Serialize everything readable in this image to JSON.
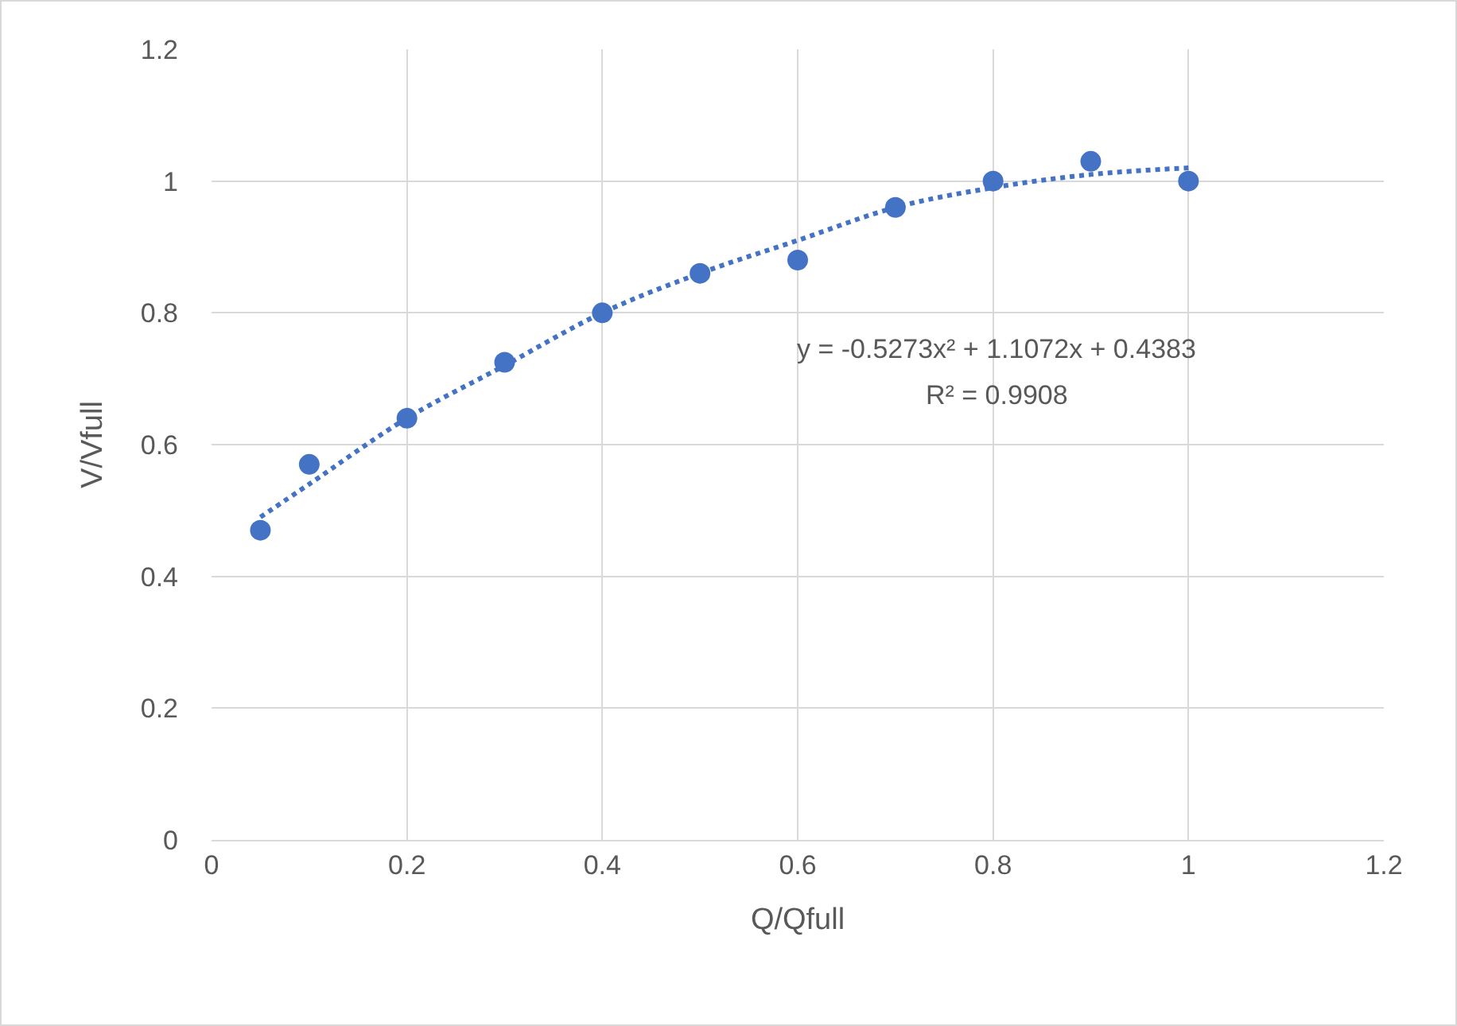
{
  "chart_data": {
    "type": "scatter",
    "xlabel": "Q/Qfull",
    "ylabel": "V/Vfull",
    "series": [
      {
        "color": "#4472c4",
        "marker": "circle",
        "x": [
          0.05,
          0.1,
          0.2,
          0.3,
          0.4,
          0.5,
          0.6,
          0.7,
          0.8,
          0.9,
          1.0
        ],
        "values": [
          0.47,
          0.57,
          0.64,
          0.725,
          0.8,
          0.86,
          0.88,
          0.96,
          1.0,
          1.03,
          1.0
        ]
      },
      {
        "type": "line",
        "color": "#4472c4",
        "line_style": "dotted",
        "x": [
          0.05,
          0.1,
          0.2,
          0.3,
          0.4,
          0.5,
          0.6,
          0.7,
          0.8,
          0.9,
          1.0
        ],
        "values": [
          0.49,
          0.54,
          0.64,
          0.72,
          0.8,
          0.86,
          0.91,
          0.96,
          0.99,
          1.01,
          1.02
        ]
      }
    ],
    "xlim": [
      0,
      1.2
    ],
    "xticks": [
      0,
      0.2,
      0.4,
      0.6,
      0.8,
      1,
      1.2
    ],
    "ylim": [
      0,
      1.2
    ],
    "yticks": [
      0,
      0.2,
      0.4,
      0.6,
      0.8,
      1,
      1.2
    ],
    "grid": true,
    "legend": false,
    "annotations": [
      "y = -0.5273x² + 1.1072x + 0.4383",
      "R² = 0.9908"
    ]
  }
}
